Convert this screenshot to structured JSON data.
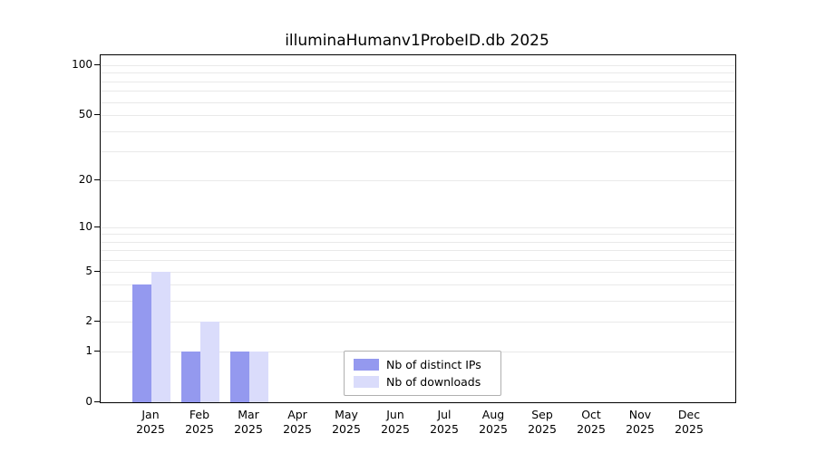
{
  "title": "illuminaHumanv1ProbeID.db 2025",
  "colors": {
    "distinct_ips": "#9499ef",
    "downloads": "#dadcfb",
    "grid": "#e9e9e9",
    "axis": "#000000"
  },
  "chart_data": {
    "type": "bar",
    "title": "illuminaHumanv1ProbeID.db 2025",
    "categories": [
      "Jan",
      "Feb",
      "Mar",
      "Apr",
      "May",
      "Jun",
      "Jul",
      "Aug",
      "Sep",
      "Oct",
      "Nov",
      "Dec"
    ],
    "year_label": "2025",
    "series": [
      {
        "name": "Nb of distinct IPs",
        "color": "#9499ef",
        "values": [
          4,
          1,
          1,
          0,
          0,
          0,
          0,
          0,
          0,
          0,
          0,
          0
        ]
      },
      {
        "name": "Nb of downloads",
        "color": "#dadcfb",
        "values": [
          5,
          2,
          1,
          0,
          0,
          0,
          0,
          0,
          0,
          0,
          0,
          0
        ]
      }
    ],
    "yticks": [
      0,
      1,
      2,
      5,
      10,
      20,
      50,
      100
    ],
    "scale": "log1p",
    "ylim": [
      0,
      100
    ],
    "grid": true,
    "legend_position": "bottom-center-inside"
  }
}
